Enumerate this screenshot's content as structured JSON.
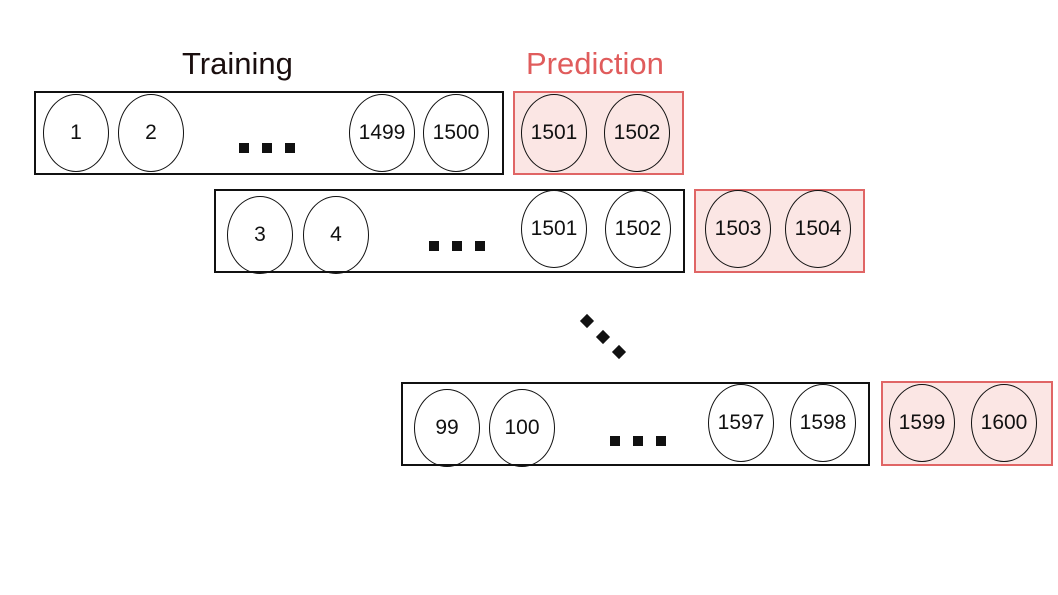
{
  "headings": {
    "training": "Training",
    "prediction": "Prediction"
  },
  "rows": [
    {
      "training": [
        "1",
        "2",
        "1499",
        "1500"
      ],
      "prediction": [
        "1501",
        "1502"
      ]
    },
    {
      "training": [
        "3",
        "4",
        "1501",
        "1502"
      ],
      "prediction": [
        "1503",
        "1504"
      ]
    },
    {
      "training": [
        "99",
        "100",
        "1597",
        "1598"
      ],
      "prediction": [
        "1599",
        "1600"
      ]
    }
  ],
  "colors": {
    "training_border": "#111111",
    "prediction_border": "#e06565",
    "prediction_fill": "#fbe6e4",
    "prediction_heading": "#e05c5c"
  }
}
